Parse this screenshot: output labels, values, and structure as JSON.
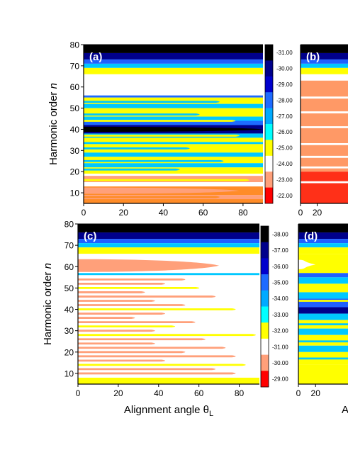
{
  "chart_data": [
    {
      "type": "heatmap",
      "panel_label": "(a)",
      "xlim": [
        0,
        90
      ],
      "ylim": [
        5,
        80
      ],
      "xticks": [
        "0",
        "20",
        "40",
        "60",
        "80"
      ],
      "yticks": [
        "10",
        "20",
        "30",
        "40",
        "50",
        "60",
        "70",
        "80"
      ],
      "ylabel_main": "Harmonic order ",
      "ylabel_var": "n",
      "colorbar_ticks": [
        "-31.00",
        "-30.00",
        "-29.00",
        "-28.00",
        "-27.00",
        "-26.00",
        "-25.00",
        "-24.00",
        "-23.00",
        "-22.00"
      ],
      "bands": [
        {
          "n0": 76,
          "n1": 80,
          "color": "#000000"
        },
        {
          "n0": 73,
          "n1": 76,
          "color": "#00008b"
        },
        {
          "n0": 71,
          "n1": 73,
          "color": "#2060ff"
        },
        {
          "n0": 69,
          "n1": 71,
          "color": "#00c8ff"
        },
        {
          "n0": 66,
          "n1": 69,
          "color": "#ffff00"
        },
        {
          "n0": 56,
          "n1": 66,
          "color": "#ffffff"
        },
        {
          "n0": 55,
          "n1": 56,
          "color": "#1e6bff"
        },
        {
          "n0": 52,
          "n1": 55,
          "color": "#ffff00"
        },
        {
          "n0": 50,
          "n1": 52,
          "color": "#00c8ff"
        },
        {
          "n0": 46,
          "n1": 50,
          "color": "#ffff00"
        },
        {
          "n0": 44,
          "n1": 46,
          "color": "#00c8ff"
        },
        {
          "n0": 42,
          "n1": 44,
          "color": "#1e6bff"
        },
        {
          "n0": 38,
          "n1": 42,
          "color": "#00008b"
        },
        {
          "n0": 36,
          "n1": 38,
          "color": "#00c8ff"
        },
        {
          "n0": 34,
          "n1": 36,
          "color": "#ffff00"
        },
        {
          "n0": 33,
          "n1": 34,
          "color": "#00c8ff"
        },
        {
          "n0": 29,
          "n1": 33,
          "color": "#ffff00"
        },
        {
          "n0": 27,
          "n1": 29,
          "color": "#00c8ff"
        },
        {
          "n0": 24,
          "n1": 27,
          "color": "#ffff00"
        },
        {
          "n0": 22,
          "n1": 24,
          "color": "#00c8ff"
        },
        {
          "n0": 19,
          "n1": 22,
          "color": "#ffff00"
        },
        {
          "n0": 18,
          "n1": 19,
          "color": "#ffffff"
        },
        {
          "n0": 15,
          "n1": 18,
          "color": "#ffa07a"
        },
        {
          "n0": 13,
          "n1": 15,
          "color": "#ffffff"
        },
        {
          "n0": 9,
          "n1": 13,
          "color": "#ff8c28"
        },
        {
          "n0": 7,
          "n1": 9,
          "color": "#ffa07a"
        },
        {
          "n0": 5,
          "n1": 7,
          "color": "#ff8c28"
        }
      ],
      "lobes": [
        {
          "n": 61,
          "half_height": 3.5,
          "theta_end": 70,
          "color": "#ffffff"
        },
        {
          "n": 40,
          "half_height": 1.2,
          "theta_end": 90,
          "color": "#000000"
        },
        {
          "n": 11,
          "half_height": 1.5,
          "theta_end": 78,
          "color": "#ffa07a"
        }
      ],
      "streaks": [
        {
          "n": 53,
          "theta_end": 70,
          "color": "#00c8ff"
        },
        {
          "n": 47,
          "theta_end": 60,
          "color": "#00c8ff"
        },
        {
          "n": 44,
          "theta_end": 78,
          "color": "#ffff00"
        },
        {
          "n": 37,
          "theta_end": 80,
          "color": "#ffff00"
        },
        {
          "n": 31,
          "theta_end": 55,
          "color": "#00c8ff"
        },
        {
          "n": 25,
          "theta_end": 72,
          "color": "#00c8ff"
        },
        {
          "n": 21,
          "theta_end": 50,
          "color": "#00c8ff"
        },
        {
          "n": 16,
          "theta_end": 85,
          "color": "#ffff00"
        },
        {
          "n": 8,
          "theta_end": 70,
          "color": "#ff8c28"
        }
      ]
    },
    {
      "type": "heatmap",
      "panel_label": "(b)",
      "xlim": [
        0,
        90
      ],
      "ylim": [
        5,
        80
      ],
      "xticks": [
        "0",
        "20"
      ],
      "bands": [
        {
          "n0": 76,
          "n1": 80,
          "color": "#000000"
        },
        {
          "n0": 73,
          "n1": 76,
          "color": "#00008b"
        },
        {
          "n0": 71,
          "n1": 73,
          "color": "#2060ff"
        },
        {
          "n0": 69,
          "n1": 71,
          "color": "#00c8ff"
        },
        {
          "n0": 66,
          "n1": 69,
          "color": "#ffff00"
        },
        {
          "n0": 63,
          "n1": 66,
          "color": "#ffffff"
        },
        {
          "n0": 20,
          "n1": 63,
          "color": "#ff9966"
        },
        {
          "n0": 5,
          "n1": 20,
          "color": "#ff3018"
        }
      ],
      "lobes": [],
      "streaks": [
        {
          "n": 55,
          "theta_end": 90,
          "color": "#ffffff"
        },
        {
          "n": 48,
          "theta_end": 90,
          "color": "#ffffff"
        },
        {
          "n": 41,
          "theta_end": 90,
          "color": "#ffffff"
        },
        {
          "n": 33,
          "theta_end": 90,
          "color": "#ffffff"
        },
        {
          "n": 27,
          "theta_end": 90,
          "color": "#ffffff"
        },
        {
          "n": 22,
          "theta_end": 90,
          "color": "#ffffff"
        },
        {
          "n": 15,
          "theta_end": 90,
          "color": "#ffffff"
        }
      ]
    },
    {
      "type": "heatmap",
      "panel_label": "(c)",
      "xlim": [
        0,
        90
      ],
      "ylim": [
        5,
        80
      ],
      "xticks": [
        "0",
        "20",
        "40",
        "60",
        "80"
      ],
      "yticks": [
        "10",
        "20",
        "30",
        "40",
        "50",
        "60",
        "70",
        "80"
      ],
      "ylabel_main": "Harmonic order ",
      "ylabel_var": "n",
      "xlabel_main": "Alignment angle θ",
      "xlabel_sub": "L",
      "colorbar_ticks": [
        "-38.00",
        "-37.00",
        "-36.00",
        "-35.00",
        "-34.00",
        "-33.00",
        "-32.00",
        "-31.00",
        "-30.00",
        "-29.00"
      ],
      "bands": [
        {
          "n0": 76,
          "n1": 80,
          "color": "#000000"
        },
        {
          "n0": 73,
          "n1": 76,
          "color": "#00008b"
        },
        {
          "n0": 71,
          "n1": 73,
          "color": "#2060ff"
        },
        {
          "n0": 69,
          "n1": 71,
          "color": "#00c8ff"
        },
        {
          "n0": 66,
          "n1": 69,
          "color": "#ffff00"
        },
        {
          "n0": 57,
          "n1": 66,
          "color": "#ffffff"
        },
        {
          "n0": 56,
          "n1": 57,
          "color": "#00c8ff"
        },
        {
          "n0": 5,
          "n1": 56,
          "color": "#ffffff"
        },
        {
          "n0": 5,
          "n1": 8,
          "color": "#ffff00"
        }
      ],
      "lobes": [
        {
          "n": 60.5,
          "half_height": 3.0,
          "theta_end": 70,
          "color": "#ffa07a"
        }
      ],
      "streaks": [
        {
          "n": 54,
          "theta_end": 55,
          "color": "#ffa07a"
        },
        {
          "n": 52,
          "theta_end": 45,
          "color": "#ffa07a"
        },
        {
          "n": 50,
          "theta_end": 62,
          "color": "#ffff00"
        },
        {
          "n": 48,
          "theta_end": 35,
          "color": "#ffa07a"
        },
        {
          "n": 46,
          "theta_end": 70,
          "color": "#ffa07a"
        },
        {
          "n": 44,
          "theta_end": 40,
          "color": "#ffa07a"
        },
        {
          "n": 42,
          "theta_end": 55,
          "color": "#ffa07a"
        },
        {
          "n": 40,
          "theta_end": 80,
          "color": "#ffff00"
        },
        {
          "n": 38,
          "theta_end": 45,
          "color": "#ffa07a"
        },
        {
          "n": 36,
          "theta_end": 30,
          "color": "#ffa07a"
        },
        {
          "n": 34,
          "theta_end": 60,
          "color": "#ffa07a"
        },
        {
          "n": 32,
          "theta_end": 50,
          "color": "#ffff00"
        },
        {
          "n": 30,
          "theta_end": 40,
          "color": "#ffa07a"
        },
        {
          "n": 28,
          "theta_end": 90,
          "color": "#ffff00"
        },
        {
          "n": 26,
          "theta_end": 65,
          "color": "#ffa07a"
        },
        {
          "n": 24,
          "theta_end": 40,
          "color": "#ffa07a"
        },
        {
          "n": 22,
          "theta_end": 75,
          "color": "#ffa07a"
        },
        {
          "n": 20,
          "theta_end": 55,
          "color": "#ffa07a"
        },
        {
          "n": 18,
          "theta_end": 80,
          "color": "#ffa07a"
        },
        {
          "n": 16,
          "theta_end": 45,
          "color": "#ffa07a"
        },
        {
          "n": 14,
          "theta_end": 85,
          "color": "#ffff00"
        },
        {
          "n": 12,
          "theta_end": 70,
          "color": "#ffa07a"
        },
        {
          "n": 10,
          "theta_end": 80,
          "color": "#ffa07a"
        }
      ]
    },
    {
      "type": "heatmap",
      "panel_label": "(d)",
      "xlim": [
        0,
        90
      ],
      "ylim": [
        5,
        80
      ],
      "xticks": [
        "0",
        "20"
      ],
      "xlabel_fragment": "A",
      "bands": [
        {
          "n0": 76,
          "n1": 80,
          "color": "#000000"
        },
        {
          "n0": 73,
          "n1": 76,
          "color": "#00008b"
        },
        {
          "n0": 71,
          "n1": 73,
          "color": "#2060ff"
        },
        {
          "n0": 69,
          "n1": 71,
          "color": "#00c8ff"
        },
        {
          "n0": 66,
          "n1": 69,
          "color": "#ffff00"
        },
        {
          "n0": 57,
          "n1": 66,
          "color": "#ffff00"
        },
        {
          "n0": 55,
          "n1": 57,
          "color": "#2060ff"
        },
        {
          "n0": 52,
          "n1": 55,
          "color": "#00c8ff"
        },
        {
          "n0": 48,
          "n1": 52,
          "color": "#ffff00"
        },
        {
          "n0": 45,
          "n1": 48,
          "color": "#00c8ff"
        },
        {
          "n0": 41,
          "n1": 45,
          "color": "#2060ff"
        },
        {
          "n0": 38,
          "n1": 41,
          "color": "#00008b"
        },
        {
          "n0": 35,
          "n1": 38,
          "color": "#00c8ff"
        },
        {
          "n0": 31,
          "n1": 35,
          "color": "#ffff00"
        },
        {
          "n0": 28,
          "n1": 31,
          "color": "#00c8ff"
        },
        {
          "n0": 23,
          "n1": 28,
          "color": "#ffff00"
        },
        {
          "n0": 20,
          "n1": 23,
          "color": "#00c8ff"
        },
        {
          "n0": 14,
          "n1": 20,
          "color": "#ffff00"
        },
        {
          "n0": 5,
          "n1": 14,
          "color": "#ffff00"
        }
      ],
      "lobes": [
        {
          "n": 61,
          "half_height": 2.2,
          "theta_end": 20,
          "color": "#ffffff"
        }
      ],
      "streaks": [
        {
          "n": 44,
          "theta_end": 90,
          "color": "#ffff00"
        },
        {
          "n": 33,
          "theta_end": 90,
          "color": "#00c8ff"
        },
        {
          "n": 25,
          "theta_end": 90,
          "color": "#00c8ff"
        },
        {
          "n": 17,
          "theta_end": 90,
          "color": "#00c8ff"
        }
      ]
    }
  ]
}
